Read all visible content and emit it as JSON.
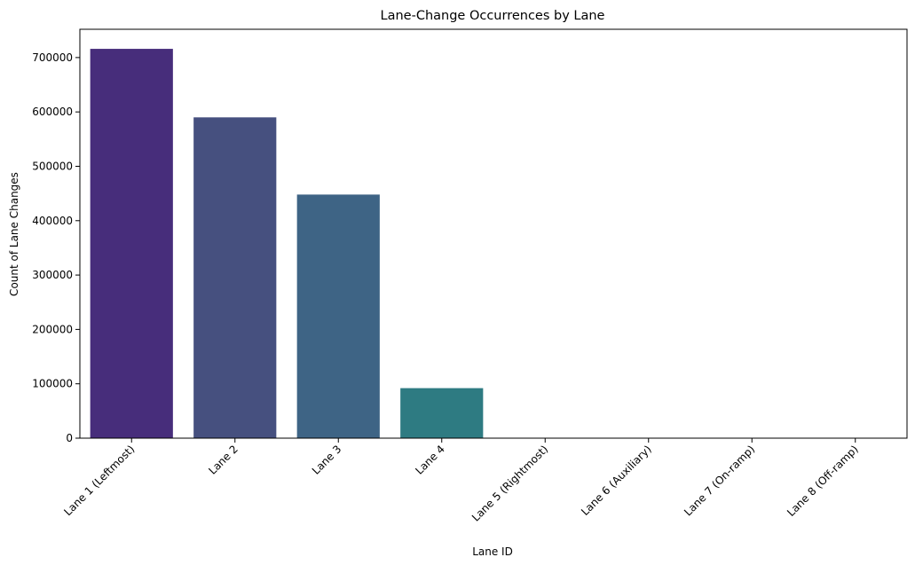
{
  "chart_data": {
    "type": "bar",
    "title": "Lane-Change Occurrences by Lane",
    "xlabel": "Lane ID",
    "ylabel": "Count of Lane Changes",
    "categories": [
      "Lane 1 (Leftmost)",
      "Lane 2",
      "Lane 3",
      "Lane 4",
      "Lane 5 (Rightmost)",
      "Lane 6 (Auxiliary)",
      "Lane 7 (On-ramp)",
      "Lane 8 (Off-ramp)"
    ],
    "values": [
      716000,
      590000,
      448000,
      92000,
      0,
      0,
      0,
      0
    ],
    "ylim": [
      0,
      752000
    ],
    "yticks": [
      0,
      100000,
      200000,
      300000,
      400000,
      500000,
      600000,
      700000
    ],
    "colors": [
      "#472d7b",
      "#46507f",
      "#3e6485",
      "#2e7b82",
      "#2a9080",
      "#3aa87a",
      "#6ccd5a",
      "#b8de29"
    ],
    "grid": false,
    "legend": "none"
  }
}
